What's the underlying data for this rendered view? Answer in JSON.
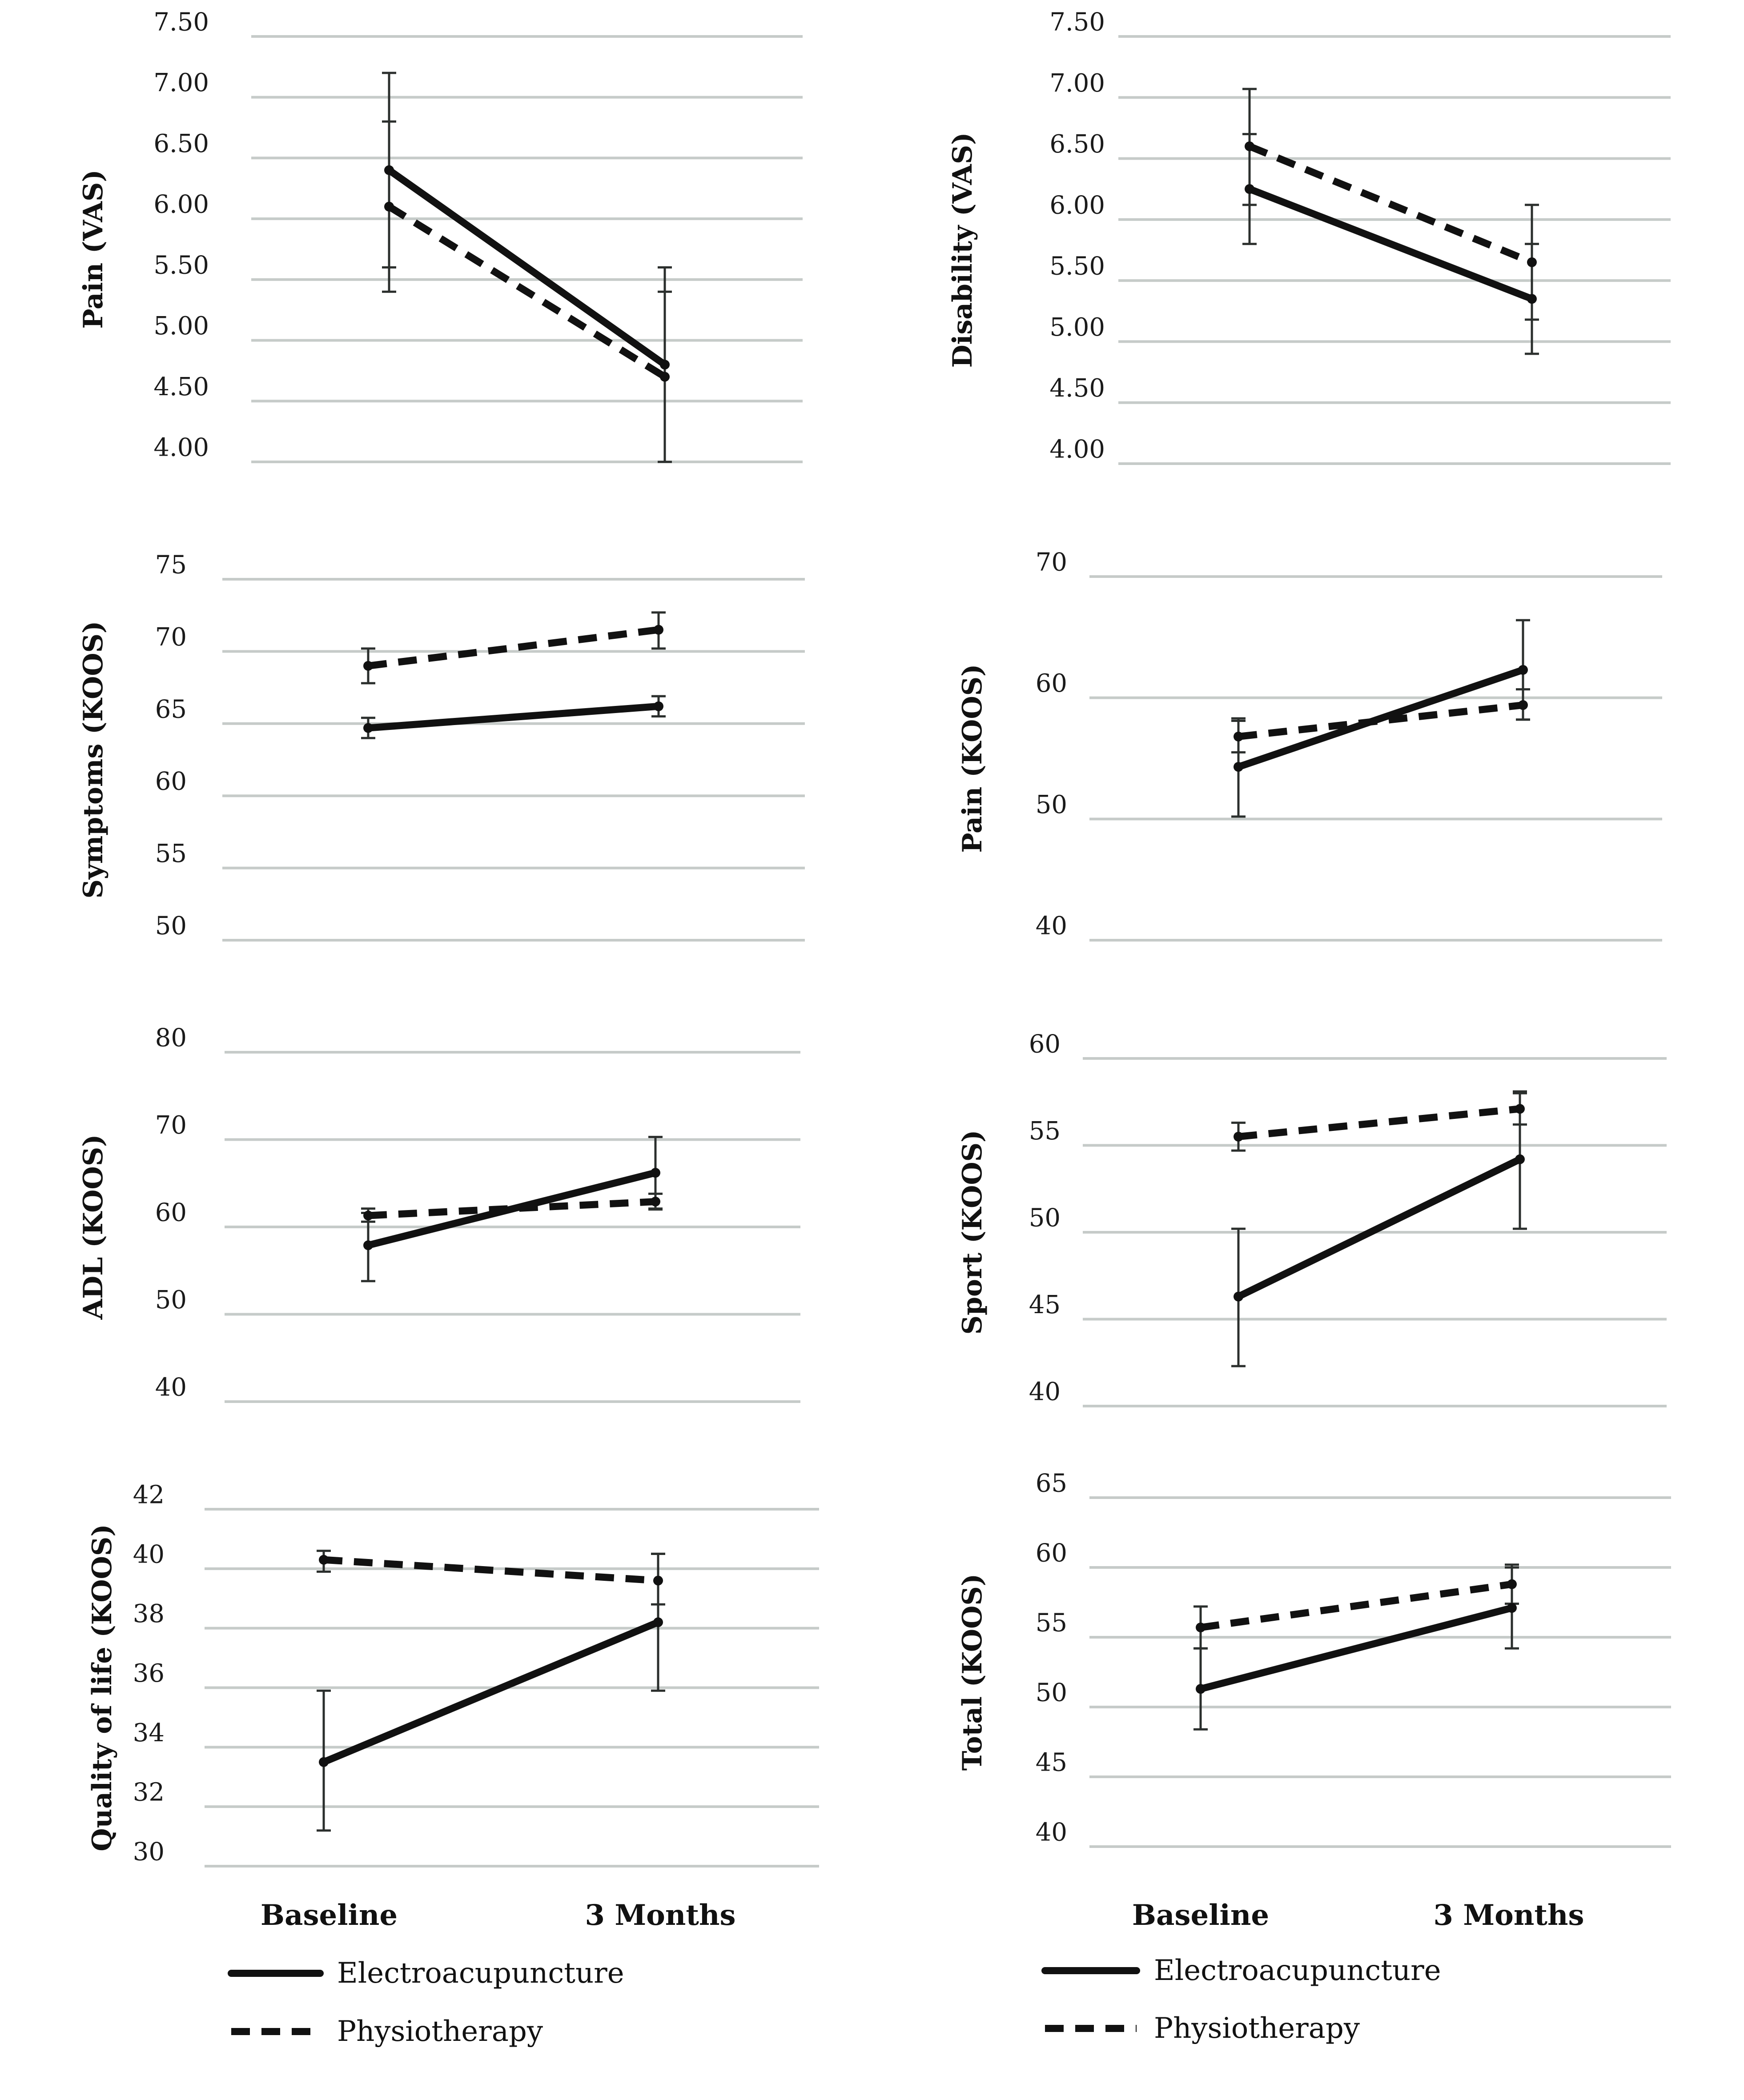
{
  "chart_data": [
    {
      "type": "line",
      "ylabel": "Pain (VAS)",
      "categories": [
        "Baseline",
        "3 Months"
      ],
      "yticks": [
        "7.50",
        "7.00",
        "6.50",
        "6.00",
        "5.50",
        "5.00",
        "4.50",
        "4.00"
      ],
      "ylim": [
        4.0,
        7.5
      ],
      "series": [
        {
          "name": "Electroacupuncture",
          "values": [
            6.4,
            4.8
          ],
          "err_low": [
            5.6,
            4.0
          ],
          "err_high": [
            7.2,
            5.6
          ]
        },
        {
          "name": "Physiotherapy",
          "values": [
            6.1,
            4.7
          ],
          "err_low": [
            5.4,
            4.0
          ],
          "err_high": [
            6.8,
            5.4
          ]
        }
      ]
    },
    {
      "type": "line",
      "ylabel": "Disability (VAS)",
      "categories": [
        "Baseline",
        "3 Months"
      ],
      "yticks": [
        "7.50",
        "7.00",
        "6.50",
        "6.00",
        "5.50",
        "5.00",
        "4.50",
        "4.00"
      ],
      "ylim": [
        4.0,
        7.5
      ],
      "series": [
        {
          "name": "Electroacupuncture",
          "values": [
            6.25,
            5.35
          ],
          "err_low": [
            5.8,
            4.9
          ],
          "err_high": [
            6.7,
            5.8
          ]
        },
        {
          "name": "Physiotherapy",
          "values": [
            6.6,
            5.65
          ],
          "err_low": [
            6.12,
            5.18
          ],
          "err_high": [
            7.07,
            6.12
          ]
        }
      ]
    },
    {
      "type": "line",
      "ylabel": "Symptoms (KOOS)",
      "categories": [
        "Baseline",
        "3 Months"
      ],
      "yticks": [
        "75",
        "70",
        "65",
        "60",
        "55",
        "50"
      ],
      "ylim": [
        50,
        75
      ],
      "series": [
        {
          "name": "Electroacupuncture",
          "values": [
            64.7,
            66.2
          ],
          "err_low": [
            64.0,
            65.5
          ],
          "err_high": [
            65.4,
            66.9
          ]
        },
        {
          "name": "Physiotherapy",
          "values": [
            69.0,
            71.5
          ],
          "err_low": [
            67.8,
            70.2
          ],
          "err_high": [
            70.2,
            72.7
          ]
        }
      ]
    },
    {
      "type": "line",
      "ylabel": "Pain (KOOS)",
      "categories": [
        "Baseline",
        "3 Months"
      ],
      "yticks": [
        "70",
        "60",
        "50",
        "40"
      ],
      "ylim": [
        40,
        70
      ],
      "series": [
        {
          "name": "Electroacupuncture",
          "values": [
            54.3,
            62.3
          ],
          "err_low": [
            50.2,
            58.2
          ],
          "err_high": [
            58.3,
            66.4
          ]
        },
        {
          "name": "Physiotherapy",
          "values": [
            56.8,
            59.4
          ],
          "err_low": [
            55.5,
            58.2
          ],
          "err_high": [
            58.1,
            60.7
          ]
        }
      ]
    },
    {
      "type": "line",
      "ylabel": "ADL (KOOS)",
      "categories": [
        "Baseline",
        "3 Months"
      ],
      "yticks": [
        "80",
        "70",
        "60",
        "50",
        "40"
      ],
      "ylim": [
        40,
        80
      ],
      "series": [
        {
          "name": "Electroacupuncture",
          "values": [
            57.9,
            66.2
          ],
          "err_low": [
            53.8,
            62.1
          ],
          "err_high": [
            61.6,
            70.3
          ]
        },
        {
          "name": "Physiotherapy",
          "values": [
            61.3,
            62.9
          ],
          "err_low": [
            60.6,
            62.0
          ],
          "err_high": [
            62.1,
            63.8
          ]
        }
      ]
    },
    {
      "type": "line",
      "ylabel": "Sport (KOOS)",
      "categories": [
        "Baseline",
        "3 Months"
      ],
      "yticks": [
        "60",
        "55",
        "50",
        "45",
        "40"
      ],
      "ylim": [
        40,
        60
      ],
      "series": [
        {
          "name": "Electroacupuncture",
          "values": [
            46.3,
            54.2
          ],
          "err_low": [
            42.3,
            50.2
          ],
          "err_high": [
            50.2,
            58.1
          ]
        },
        {
          "name": "Physiotherapy",
          "values": [
            55.5,
            57.1
          ],
          "err_low": [
            54.7,
            56.2
          ],
          "err_high": [
            56.3,
            58.0
          ]
        }
      ]
    },
    {
      "type": "line",
      "ylabel": "Quality of life (KOOS)",
      "categories": [
        "Baseline",
        "3 Months"
      ],
      "yticks": [
        "42",
        "40",
        "38",
        "36",
        "34",
        "32",
        "30"
      ],
      "ylim": [
        30,
        42
      ],
      "series": [
        {
          "name": "Electroacupuncture",
          "values": [
            33.5,
            38.2
          ],
          "err_low": [
            31.2,
            35.9
          ],
          "err_high": [
            35.9,
            40.5
          ]
        },
        {
          "name": "Physiotherapy",
          "values": [
            40.3,
            39.6
          ],
          "err_low": [
            39.9,
            38.8
          ],
          "err_high": [
            40.6,
            40.5
          ]
        }
      ]
    },
    {
      "type": "line",
      "ylabel": "Total (KOOS)",
      "categories": [
        "Baseline",
        "3 Months"
      ],
      "yticks": [
        "65",
        "60",
        "55",
        "50",
        "45",
        "40"
      ],
      "ylim": [
        40,
        65
      ],
      "series": [
        {
          "name": "Electroacupuncture",
          "values": [
            51.3,
            57.1
          ],
          "err_low": [
            48.4,
            54.2
          ],
          "err_high": [
            54.2,
            60.0
          ]
        },
        {
          "name": "Physiotherapy",
          "values": [
            55.7,
            58.8
          ],
          "err_low": [
            54.2,
            57.4
          ],
          "err_high": [
            57.2,
            60.2
          ]
        }
      ]
    }
  ],
  "x_categories": [
    "Baseline",
    "3 Months"
  ],
  "legend": {
    "solid_label": "Electroacupuncture",
    "dashed_label": "Physiotherapy"
  }
}
